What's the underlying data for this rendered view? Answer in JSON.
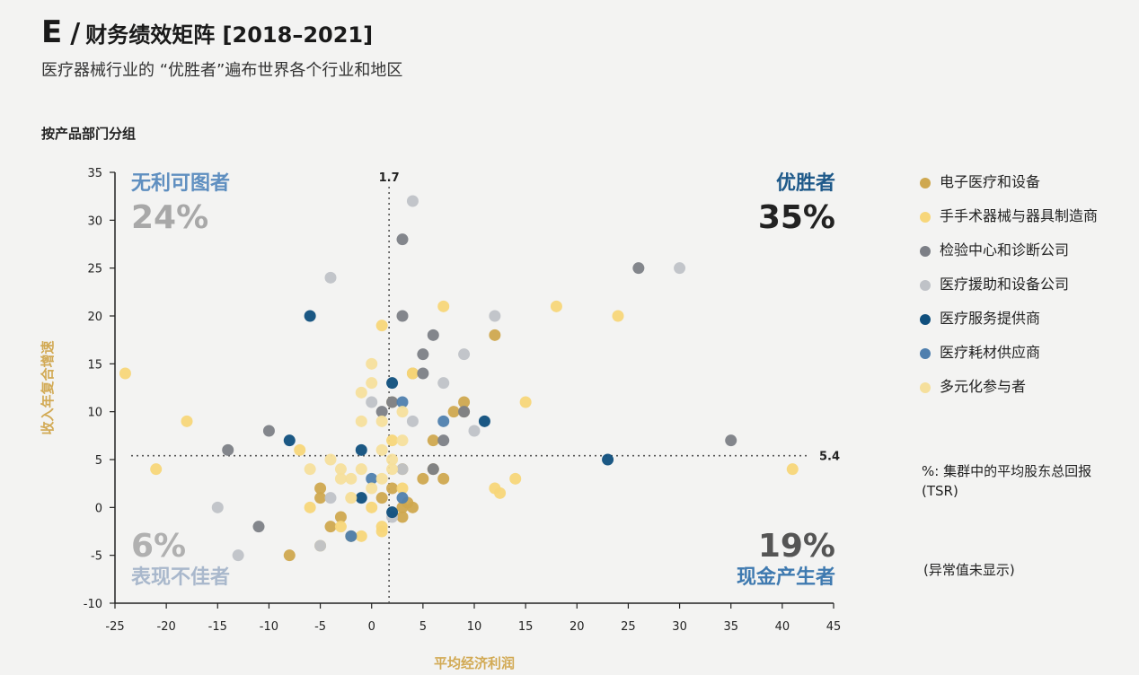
{
  "header": {
    "letter": "E",
    "slash": "/",
    "title": "财务绩效矩阵 [2018–2021]",
    "subtitle": "医疗器械行业的 “优胜者”遍布世界各个行业和地区",
    "grouping": "按产品部门分组"
  },
  "legend": {
    "items": [
      {
        "label": "电子医疗和设备",
        "color": "#cfa84f"
      },
      {
        "label": "手手术器械与器具制造商",
        "color": "#f7d679"
      },
      {
        "label": "检验中心和诊断公司",
        "color": "#7c7f86"
      },
      {
        "label": "医疗援助和设备公司",
        "color": "#bfc2c7"
      },
      {
        "label": "医疗服务提供商",
        "color": "#0f4f7d"
      },
      {
        "label": "医疗耗材供应商",
        "color": "#4f7fae"
      },
      {
        "label": "多元化参与者",
        "color": "#f5df9c"
      }
    ],
    "note": "%: 集群中的平均股东总回报 (TSR)",
    "outliers": "(异常值未显示)"
  },
  "chart_data": {
    "type": "scatter",
    "xlabel": "平均经济利润",
    "ylabel": "收入年复合增速",
    "xlim": [
      -25,
      45
    ],
    "ylim": [
      -10,
      35
    ],
    "xticks": [
      -25,
      -20,
      -15,
      -10,
      -5,
      0,
      5,
      10,
      15,
      20,
      25,
      30,
      35,
      40,
      45
    ],
    "yticks": [
      -10,
      -5,
      0,
      5,
      10,
      15,
      20,
      25,
      30,
      35
    ],
    "ref_lines": {
      "x": 1.7,
      "x_label": "1.7",
      "y": 5.4,
      "y_label": "5.4"
    },
    "quadrants": [
      {
        "name": "无利可图者",
        "value": "24%",
        "position": "top-left",
        "color": "#5f8fc0",
        "value_color": "#a8a8a8"
      },
      {
        "name": "优胜者",
        "value": "35%",
        "position": "top-right",
        "color": "#1f5a8a",
        "value_color": "#222222"
      },
      {
        "name": "表现不佳者",
        "value": "6%",
        "position": "bottom-left",
        "color": "#a9b8cc",
        "value_color": "#b0b0b0"
      },
      {
        "name": "现金产生者",
        "value": "19%",
        "position": "bottom-right",
        "color": "#3f7ab0",
        "value_color": "#555555"
      }
    ],
    "series": [
      {
        "name": "电子医疗和设备",
        "color": "#cfa84f",
        "points": [
          [
            -5,
            1
          ],
          [
            -3,
            -1
          ],
          [
            -4,
            -2
          ],
          [
            -5,
            2
          ],
          [
            -2,
            -3
          ],
          [
            3,
            -1
          ],
          [
            3,
            0
          ],
          [
            4,
            0
          ],
          [
            3.5,
            0.5
          ],
          [
            5,
            3
          ],
          [
            6,
            7
          ],
          [
            6,
            4
          ],
          [
            7,
            3
          ],
          [
            8,
            10
          ],
          [
            9,
            10
          ],
          [
            9,
            11
          ],
          [
            12,
            18
          ],
          [
            2,
            2
          ],
          [
            4,
            14
          ],
          [
            3,
            4
          ],
          [
            1,
            1
          ],
          [
            -8,
            -5
          ]
        ]
      },
      {
        "name": "手手术器械与器具制造商",
        "color": "#f7d679",
        "points": [
          [
            -24,
            14
          ],
          [
            -21,
            4
          ],
          [
            -18,
            9
          ],
          [
            -7,
            6
          ],
          [
            -6,
            0
          ],
          [
            -5,
            -4
          ],
          [
            -3,
            -2
          ],
          [
            -2,
            1
          ],
          [
            -1,
            -3
          ],
          [
            0,
            0
          ],
          [
            1,
            -2
          ],
          [
            1,
            -2.5
          ],
          [
            2,
            7
          ],
          [
            2,
            11
          ],
          [
            3,
            2
          ],
          [
            1,
            19
          ],
          [
            4,
            14
          ],
          [
            7,
            21
          ],
          [
            15,
            11
          ],
          [
            14,
            3
          ],
          [
            12,
            2
          ],
          [
            12.5,
            1.5
          ],
          [
            18,
            21
          ],
          [
            24,
            20
          ],
          [
            41,
            4
          ]
        ]
      },
      {
        "name": "检验中心和诊断公司",
        "color": "#7c7f86",
        "points": [
          [
            -14,
            6
          ],
          [
            -11,
            -2
          ],
          [
            -10,
            8
          ],
          [
            1,
            10
          ],
          [
            2,
            11
          ],
          [
            3,
            20
          ],
          [
            3,
            28
          ],
          [
            5,
            16
          ],
          [
            5,
            14
          ],
          [
            6,
            4
          ],
          [
            6,
            18
          ],
          [
            7,
            7
          ],
          [
            9,
            10
          ],
          [
            26,
            25
          ],
          [
            35,
            7
          ]
        ]
      },
      {
        "name": "医疗援助和设备公司",
        "color": "#bfc2c7",
        "points": [
          [
            -15,
            0
          ],
          [
            -13,
            -5
          ],
          [
            -5,
            -4
          ],
          [
            -4,
            1
          ],
          [
            -4,
            24
          ],
          [
            0,
            11
          ],
          [
            2,
            -1
          ],
          [
            3,
            4
          ],
          [
            4,
            9
          ],
          [
            4,
            32
          ],
          [
            7,
            13
          ],
          [
            9,
            16
          ],
          [
            10,
            8
          ],
          [
            12,
            20
          ],
          [
            30,
            25
          ]
        ]
      },
      {
        "name": "医疗服务提供商",
        "color": "#0f4f7d",
        "points": [
          [
            -6,
            20
          ],
          [
            -8,
            7
          ],
          [
            -1,
            6
          ],
          [
            -1,
            1
          ],
          [
            2,
            13
          ],
          [
            2,
            -0.5
          ],
          [
            11,
            9
          ],
          [
            23,
            5
          ]
        ]
      },
      {
        "name": "医疗耗材供应商",
        "color": "#4f7fae",
        "points": [
          [
            -2,
            -3
          ],
          [
            0,
            3
          ],
          [
            3,
            1
          ],
          [
            7,
            9
          ],
          [
            3,
            11
          ]
        ]
      },
      {
        "name": "多元化参与者",
        "color": "#f5df9c",
        "points": [
          [
            -6,
            4
          ],
          [
            -4,
            5
          ],
          [
            -3,
            4
          ],
          [
            -2,
            3
          ],
          [
            -1,
            4
          ],
          [
            0,
            2
          ],
          [
            1,
            3
          ],
          [
            1,
            6
          ],
          [
            2,
            5
          ],
          [
            0,
            15
          ],
          [
            -1,
            12
          ],
          [
            0,
            13
          ],
          [
            1,
            9
          ],
          [
            -1,
            9
          ],
          [
            2,
            4
          ],
          [
            3,
            7
          ],
          [
            -3,
            3
          ],
          [
            -2,
            1
          ],
          [
            3,
            10
          ]
        ]
      }
    ]
  }
}
